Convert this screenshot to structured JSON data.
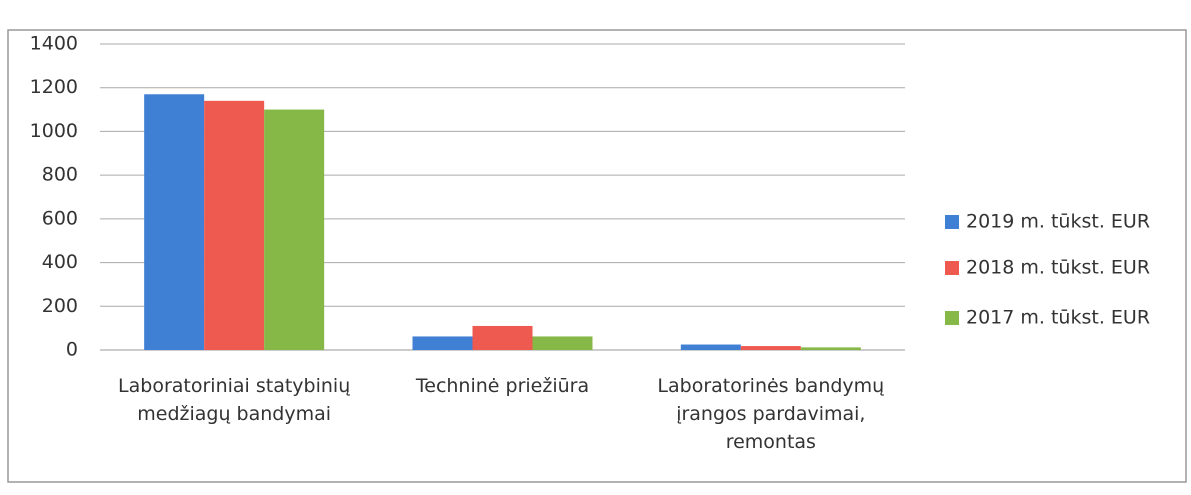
{
  "chart_data": {
    "type": "bar",
    "categories": [
      "Laboratoriniai statybinių medžiagų bandymai",
      "Techninė priežiūra",
      "Laboratorinės bandymų įrangos pardavimai, remontas"
    ],
    "series": [
      {
        "name": "2019 m. tūkst. EUR",
        "color": "#3f7fd4",
        "values": [
          1170,
          62,
          25
        ]
      },
      {
        "name": "2018 m. tūkst. EUR",
        "color": "#ee5a4f",
        "values": [
          1140,
          110,
          18
        ]
      },
      {
        "name": "2017 m. tūkst. EUR",
        "color": "#86b848",
        "values": [
          1100,
          62,
          12
        ]
      }
    ],
    "ylim": [
      0,
      1400
    ],
    "yticks": [
      0,
      200,
      400,
      600,
      800,
      1000,
      1200,
      1400
    ],
    "grid": true,
    "legend": "right"
  }
}
